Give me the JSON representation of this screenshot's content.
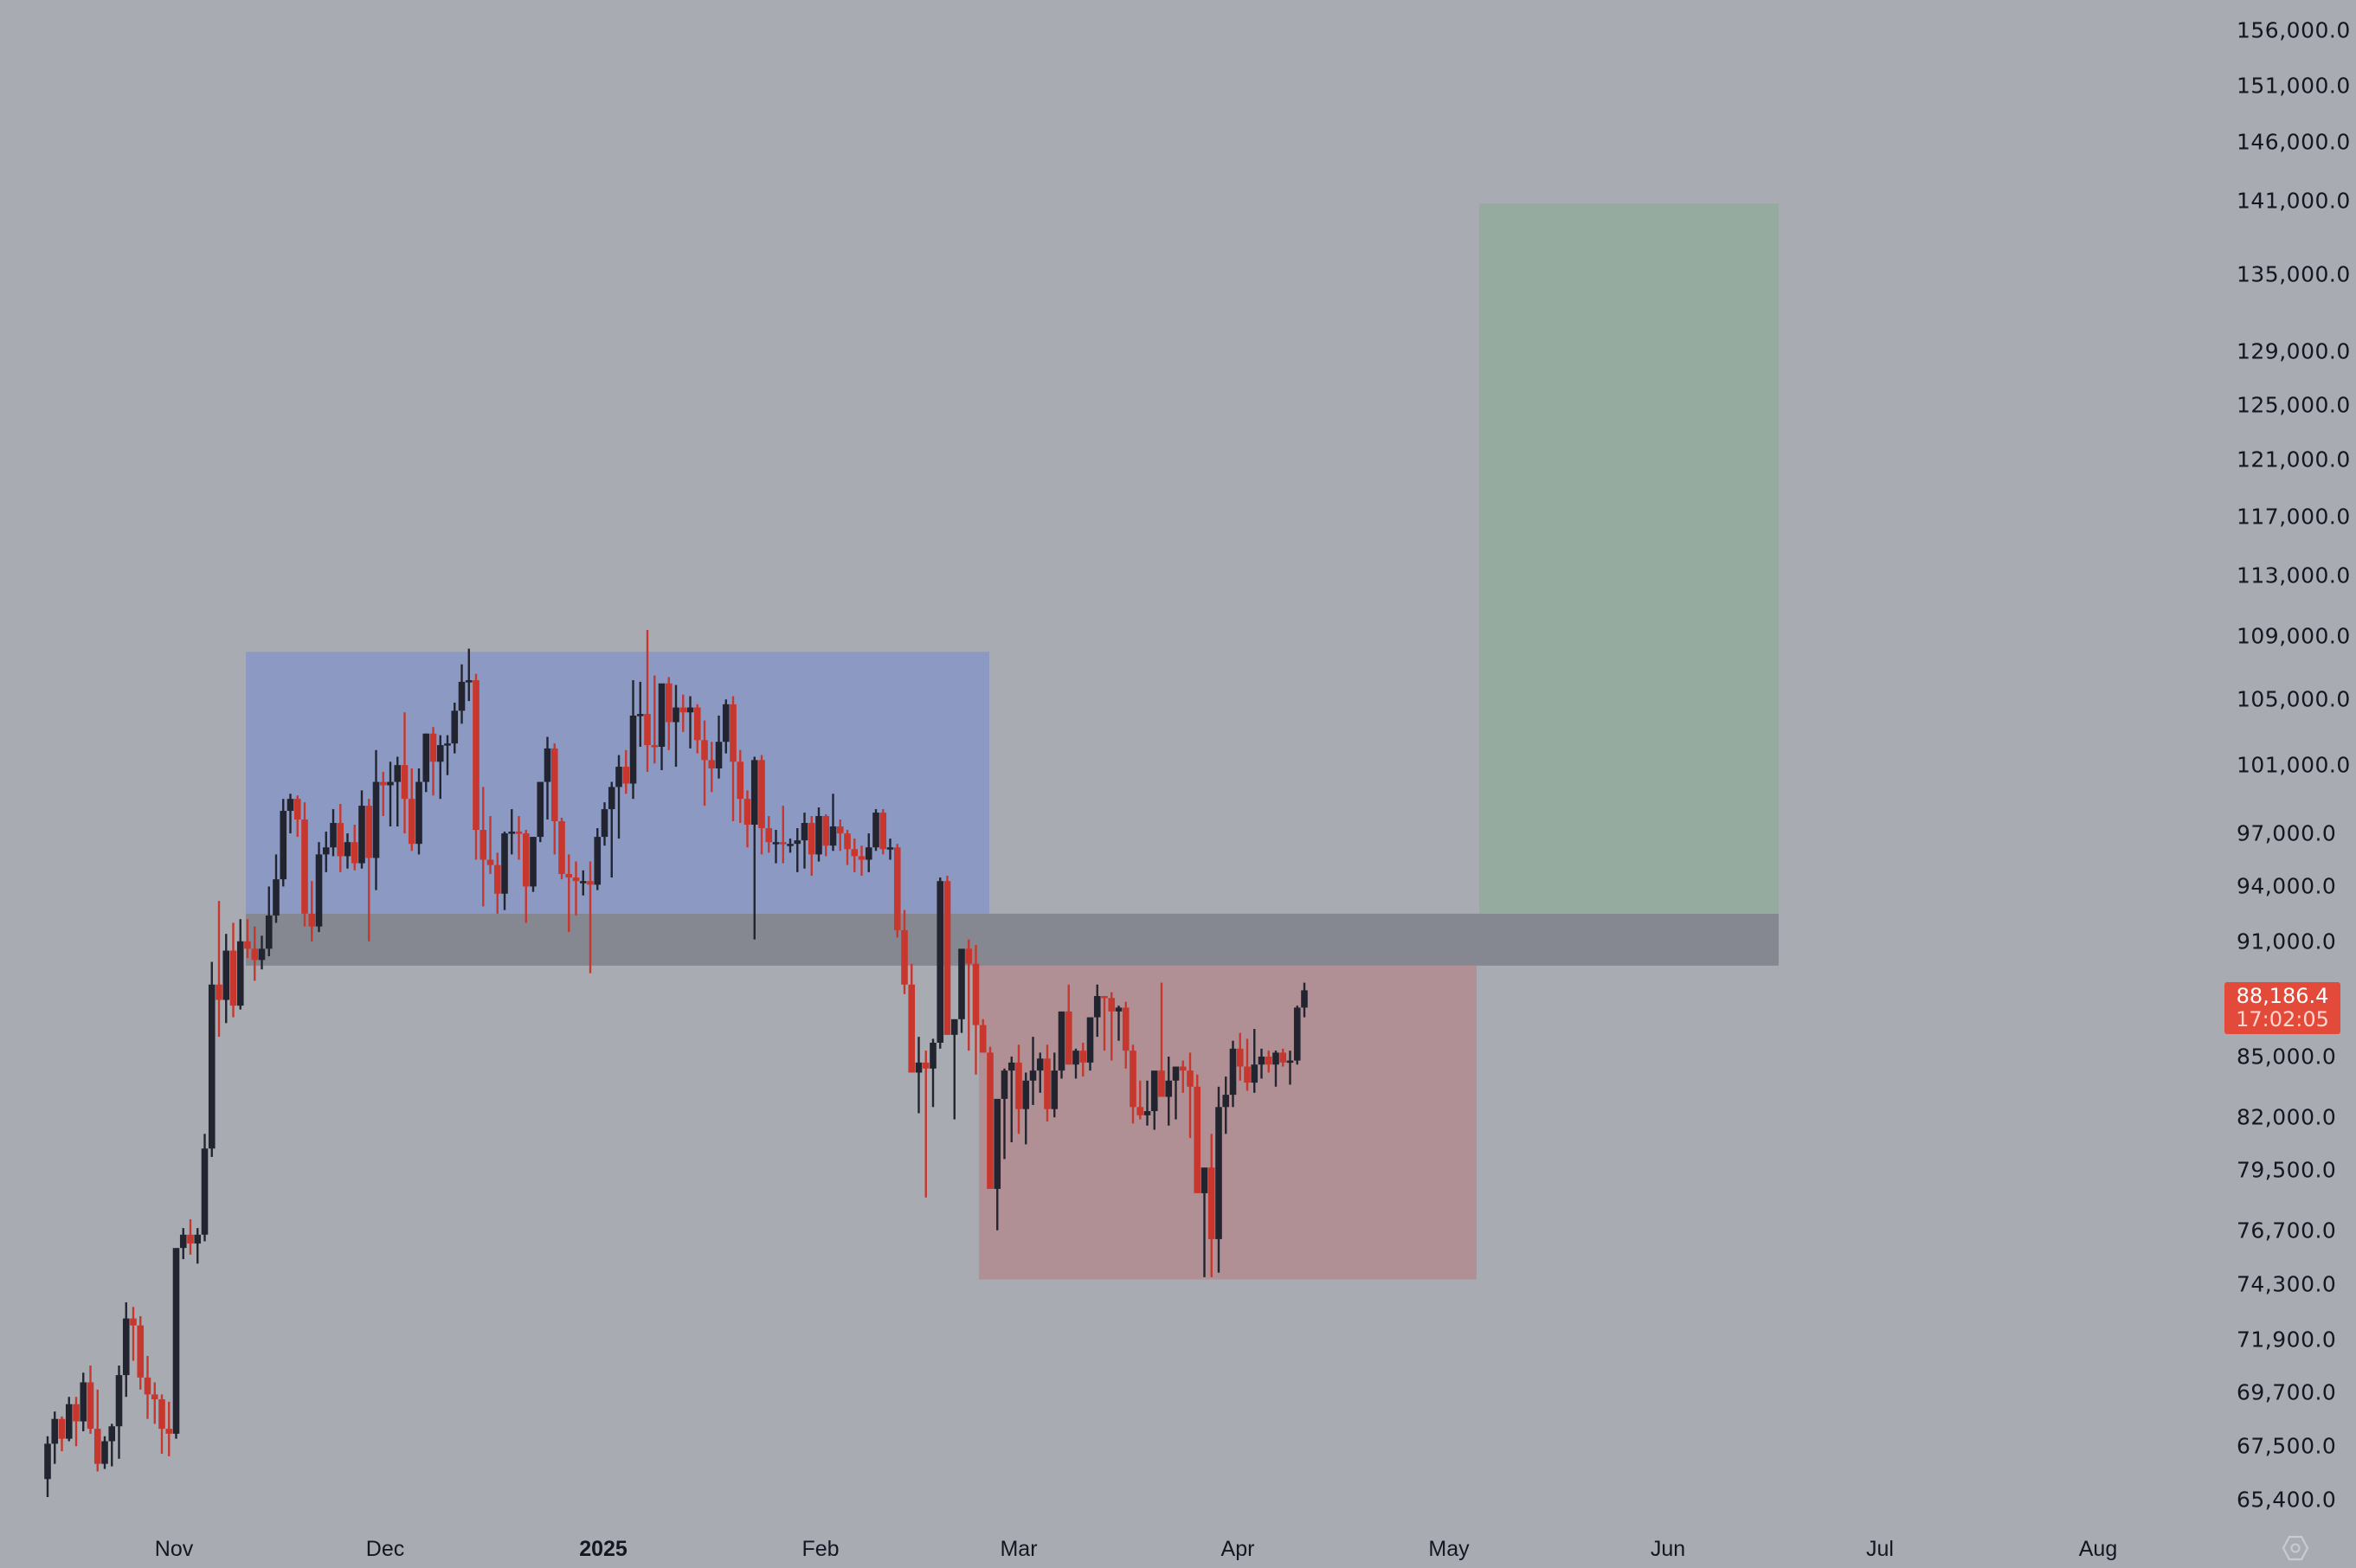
{
  "chart_data": {
    "type": "candlestick",
    "title": "",
    "xlabel": "",
    "ylabel": "",
    "y_scale": "log",
    "ylim": [
      63800,
      160000
    ],
    "grid": false,
    "colors": {
      "background": "#a9abb3",
      "up_candle": "#22252f",
      "down_candle": "#c8372e",
      "range_box": "#8c99c2",
      "resistance_band": "#858890",
      "lower_box": "#b09095",
      "target_box": "#96ab9f",
      "price_tag": "#e44a3a"
    },
    "y_ticks": [
      {
        "label": "156,000.0",
        "value": 156000
      },
      {
        "label": "151,000.0",
        "value": 151000
      },
      {
        "label": "146,000.0",
        "value": 146000
      },
      {
        "label": "141,000.0",
        "value": 141000
      },
      {
        "label": "135,000.0",
        "value": 135000
      },
      {
        "label": "129,000.0",
        "value": 129000
      },
      {
        "label": "125,000.0",
        "value": 125000
      },
      {
        "label": "121,000.0",
        "value": 121000
      },
      {
        "label": "117,000.0",
        "value": 117000
      },
      {
        "label": "113,000.0",
        "value": 113000
      },
      {
        "label": "109,000.0",
        "value": 109000
      },
      {
        "label": "105,000.0",
        "value": 105000
      },
      {
        "label": "101,000.0",
        "value": 101000
      },
      {
        "label": "97,000.0",
        "value": 97000
      },
      {
        "label": "94,000.0",
        "value": 94000
      },
      {
        "label": "91,000.0",
        "value": 91000
      },
      {
        "label": "85,000.0",
        "value": 85000
      },
      {
        "label": "82,000.0",
        "value": 82000
      },
      {
        "label": "79,500.0",
        "value": 79500
      },
      {
        "label": "76,700.0",
        "value": 76700
      },
      {
        "label": "74,300.0",
        "value": 74300
      },
      {
        "label": "71,900.0",
        "value": 71900
      },
      {
        "label": "69,700.0",
        "value": 69700
      },
      {
        "label": "67,500.0",
        "value": 67500
      },
      {
        "label": "65,400.0",
        "value": 65400
      }
    ],
    "x_ticks": [
      {
        "label": "Nov",
        "x": 201,
        "bold": false
      },
      {
        "label": "Dec",
        "x": 445,
        "bold": false
      },
      {
        "label": "2025",
        "x": 697,
        "bold": true
      },
      {
        "label": "Feb",
        "x": 948,
        "bold": false
      },
      {
        "label": "Mar",
        "x": 1177,
        "bold": false
      },
      {
        "label": "Apr",
        "x": 1430,
        "bold": false
      },
      {
        "label": "May",
        "x": 1674,
        "bold": false
      },
      {
        "label": "Jun",
        "x": 1927,
        "bold": false
      },
      {
        "label": "Jul",
        "x": 2172,
        "bold": false
      },
      {
        "label": "Aug",
        "x": 2424,
        "bold": false
      }
    ],
    "current_price": {
      "value": 88186.4,
      "label": "88,186.4",
      "countdown": "17:02:05"
    },
    "zones": [
      {
        "name": "consolidation-range",
        "from_x": 284,
        "to_x": 1143,
        "top": 108000,
        "bottom": 92500,
        "color": "#8c99c2"
      },
      {
        "name": "resistance-band",
        "from_x": 284,
        "to_x": 2055,
        "top": 92500,
        "bottom": 89700,
        "color": "#858890"
      },
      {
        "name": "correction-range",
        "from_x": 1131,
        "to_x": 1706,
        "top": 89700,
        "bottom": 74500,
        "color": "#b09095"
      },
      {
        "name": "target-projection",
        "from_x": 1709,
        "to_x": 2055,
        "top": 140800,
        "bottom": 92500,
        "color": "#96ab9f"
      }
    ],
    "candles_start_x": 55,
    "candle_spacing": 8.25,
    "candles": [
      [
        66200,
        67900,
        65500,
        67600
      ],
      [
        67600,
        68900,
        66800,
        68600
      ],
      [
        68600,
        68700,
        67300,
        67800
      ],
      [
        67800,
        69500,
        67700,
        69200
      ],
      [
        69200,
        69500,
        67500,
        68500
      ],
      [
        68500,
        70500,
        68100,
        70100
      ],
      [
        70100,
        70800,
        68000,
        68200
      ],
      [
        68200,
        69800,
        66500,
        66800
      ],
      [
        66800,
        67900,
        66600,
        67700
      ],
      [
        67700,
        68400,
        66700,
        68300
      ],
      [
        68300,
        70800,
        67000,
        70400
      ],
      [
        70400,
        73500,
        69500,
        72800
      ],
      [
        72800,
        73300,
        71000,
        72500
      ],
      [
        72500,
        72900,
        69800,
        70300
      ],
      [
        70300,
        71200,
        68600,
        69600
      ],
      [
        69600,
        70100,
        68400,
        69400
      ],
      [
        69400,
        69600,
        67200,
        68200
      ],
      [
        68200,
        69300,
        67100,
        68000
      ],
      [
        68000,
        74500,
        67800,
        75900
      ],
      [
        75900,
        76800,
        75400,
        76500
      ],
      [
        76500,
        77200,
        75600,
        76100
      ],
      [
        76100,
        76800,
        75200,
        76500
      ],
      [
        76500,
        81200,
        76200,
        80500
      ],
      [
        80500,
        89900,
        80100,
        88700
      ],
      [
        88700,
        93200,
        86000,
        87900
      ],
      [
        87900,
        91400,
        86700,
        90500
      ],
      [
        90500,
        92000,
        87000,
        87600
      ],
      [
        87600,
        92200,
        87400,
        91000
      ],
      [
        91000,
        92200,
        90100,
        90600
      ],
      [
        90600,
        91800,
        88900,
        90000
      ],
      [
        90000,
        91300,
        89500,
        90600
      ],
      [
        90600,
        94000,
        90200,
        92400
      ],
      [
        92400,
        95800,
        92000,
        94400
      ],
      [
        94400,
        99000,
        94000,
        98300
      ],
      [
        98300,
        99300,
        97000,
        99000
      ],
      [
        99000,
        99200,
        96800,
        97800
      ],
      [
        97800,
        98800,
        91800,
        92500
      ],
      [
        92500,
        94300,
        91000,
        91800
      ],
      [
        91800,
        96500,
        91500,
        95800
      ],
      [
        95800,
        97100,
        94800,
        96200
      ],
      [
        96200,
        98400,
        95700,
        97600
      ],
      [
        97600,
        98700,
        94800,
        95700
      ],
      [
        95700,
        97000,
        95000,
        96500
      ],
      [
        96500,
        97500,
        94900,
        95300
      ],
      [
        95300,
        99500,
        95000,
        98600
      ],
      [
        98600,
        99000,
        91000,
        95600
      ],
      [
        95600,
        101900,
        93800,
        100000
      ],
      [
        100000,
        100600,
        98000,
        99800
      ],
      [
        99800,
        101200,
        97400,
        100000
      ],
      [
        100000,
        101500,
        97400,
        101000
      ],
      [
        101000,
        104200,
        97000,
        99000
      ],
      [
        99000,
        100800,
        96000,
        96400
      ],
      [
        96400,
        100800,
        95800,
        100000
      ],
      [
        100000,
        102900,
        99400,
        102900
      ],
      [
        102900,
        103300,
        99200,
        101200
      ],
      [
        101200,
        102800,
        99000,
        102200
      ],
      [
        102200,
        102800,
        100400,
        102300
      ],
      [
        102300,
        104800,
        101700,
        104300
      ],
      [
        104300,
        107200,
        103500,
        106100
      ],
      [
        106100,
        108200,
        104900,
        106200
      ],
      [
        106200,
        106600,
        95500,
        97200
      ],
      [
        97200,
        99700,
        92900,
        95500
      ],
      [
        95500,
        98000,
        94700,
        95200
      ],
      [
        95200,
        95900,
        92500,
        93600
      ],
      [
        93600,
        97100,
        92700,
        97000
      ],
      [
        97000,
        98400,
        95800,
        97100
      ],
      [
        97100,
        98000,
        95500,
        97000
      ],
      [
        97000,
        97200,
        92000,
        94000
      ],
      [
        94000,
        96800,
        93700,
        96800
      ],
      [
        96800,
        100000,
        96500,
        100000
      ],
      [
        100000,
        102700,
        97800,
        102000
      ],
      [
        102000,
        102300,
        95800,
        97700
      ],
      [
        97700,
        97900,
        94400,
        94700
      ],
      [
        94700,
        95800,
        91500,
        94500
      ],
      [
        94500,
        95400,
        92400,
        94300
      ],
      [
        94300,
        94900,
        93500,
        94300
      ],
      [
        94300,
        95400,
        89300,
        94100
      ],
      [
        94100,
        97300,
        93800,
        96800
      ],
      [
        96800,
        98800,
        96300,
        98400
      ],
      [
        98400,
        100000,
        94500,
        99700
      ],
      [
        99700,
        101600,
        96700,
        100900
      ],
      [
        100900,
        101900,
        99300,
        99900
      ],
      [
        99900,
        106200,
        99000,
        104000
      ],
      [
        104000,
        106100,
        102100,
        104100
      ],
      [
        104100,
        109400,
        100600,
        102200
      ],
      [
        102200,
        106500,
        101100,
        102100
      ],
      [
        102100,
        105900,
        100700,
        106000
      ],
      [
        106000,
        106400,
        101900,
        103600
      ],
      [
        103600,
        105900,
        100900,
        104500
      ],
      [
        104500,
        105300,
        103000,
        104200
      ],
      [
        104200,
        105200,
        102000,
        104500
      ],
      [
        104500,
        104700,
        101700,
        102500
      ],
      [
        102500,
        103700,
        98600,
        101300
      ],
      [
        101300,
        102400,
        99400,
        100800
      ],
      [
        100800,
        104000,
        100200,
        102400
      ],
      [
        102400,
        105000,
        101700,
        104700
      ],
      [
        104700,
        105200,
        97700,
        101200
      ],
      [
        101200,
        101900,
        97600,
        99000
      ],
      [
        99000,
        99500,
        96200,
        97500
      ],
      [
        97500,
        101500,
        91100,
        101300
      ],
      [
        101300,
        101600,
        95800,
        97300
      ],
      [
        97300,
        98000,
        95900,
        96500
      ],
      [
        96500,
        97200,
        95300,
        96500
      ],
      [
        96500,
        98600,
        95300,
        96400
      ],
      [
        96400,
        96700,
        95900,
        96400
      ],
      [
        96400,
        97300,
        94800,
        96600
      ],
      [
        96600,
        98200,
        95000,
        97600
      ],
      [
        97600,
        98000,
        94600,
        95800
      ],
      [
        95800,
        98500,
        95400,
        98000
      ],
      [
        98000,
        98100,
        95700,
        96300
      ],
      [
        96300,
        99300,
        96000,
        97400
      ],
      [
        97400,
        97800,
        96000,
        97000
      ],
      [
        97000,
        97200,
        95200,
        96100
      ],
      [
        96100,
        96700,
        94800,
        95700
      ],
      [
        95700,
        96300,
        94600,
        95500
      ],
      [
        95500,
        97000,
        94800,
        96200
      ],
      [
        96200,
        98400,
        96000,
        98200
      ],
      [
        98200,
        98400,
        95800,
        96100
      ],
      [
        96100,
        96700,
        95500,
        96200
      ],
      [
        96200,
        96400,
        91200,
        91600
      ],
      [
        91600,
        92700,
        88200,
        88700
      ],
      [
        88700,
        89800,
        86300,
        84200
      ],
      [
        84200,
        86000,
        82200,
        84700
      ],
      [
        84700,
        85300,
        78200,
        84400
      ],
      [
        84400,
        85900,
        82500,
        85700
      ],
      [
        85700,
        94500,
        85400,
        94300
      ],
      [
        94300,
        94600,
        86100,
        86100
      ],
      [
        86100,
        86900,
        81900,
        86900
      ],
      [
        86900,
        88400,
        86200,
        90600
      ],
      [
        90600,
        91100,
        85300,
        89800
      ],
      [
        89800,
        90800,
        84100,
        86600
      ],
      [
        86600,
        86900,
        85600,
        85200
      ],
      [
        85200,
        85500,
        80300,
        78600
      ],
      [
        78600,
        81200,
        76700,
        82900
      ],
      [
        82900,
        84400,
        80000,
        84300
      ],
      [
        84300,
        85000,
        80800,
        84700
      ],
      [
        84700,
        85600,
        81200,
        82400
      ],
      [
        82400,
        84200,
        80700,
        83800
      ],
      [
        83800,
        86000,
        82600,
        84300
      ],
      [
        84300,
        85200,
        83200,
        84900
      ],
      [
        84900,
        85600,
        81800,
        82400
      ],
      [
        82400,
        85200,
        82000,
        84300
      ],
      [
        84300,
        87200,
        83900,
        87300
      ],
      [
        87300,
        88700,
        84600,
        84600
      ],
      [
        84600,
        85400,
        83900,
        85300
      ],
      [
        85300,
        85700,
        84000,
        84700
      ],
      [
        84700,
        86600,
        84300,
        87000
      ],
      [
        87000,
        88700,
        86000,
        88100
      ],
      [
        88100,
        88100,
        85300,
        88000
      ],
      [
        88000,
        88300,
        84800,
        87300
      ],
      [
        87300,
        87600,
        85800,
        87500
      ],
      [
        87500,
        87800,
        84400,
        85300
      ],
      [
        85300,
        85600,
        81700,
        82500
      ],
      [
        82500,
        83800,
        81900,
        82100
      ],
      [
        82100,
        83800,
        81600,
        82300
      ],
      [
        82300,
        84000,
        81400,
        84300
      ],
      [
        84300,
        88800,
        84100,
        83000
      ],
      [
        83000,
        85000,
        81600,
        83800
      ],
      [
        83800,
        84300,
        81900,
        84500
      ],
      [
        84500,
        84800,
        83200,
        84300
      ],
      [
        84300,
        85200,
        81000,
        83500
      ],
      [
        83500,
        84100,
        80000,
        78400
      ],
      [
        78400,
        79400,
        74600,
        79600
      ],
      [
        79600,
        81200,
        74600,
        76300
      ],
      [
        76300,
        83500,
        74800,
        82500
      ],
      [
        82500,
        84000,
        81200,
        83100
      ],
      [
        83100,
        85800,
        82500,
        85400
      ],
      [
        85400,
        86200,
        83800,
        84500
      ],
      [
        84500,
        85900,
        83300,
        83700
      ],
      [
        83700,
        86400,
        83200,
        84600
      ],
      [
        84600,
        85400,
        83900,
        85000
      ],
      [
        85000,
        85300,
        84200,
        84600
      ],
      [
        84600,
        85300,
        83500,
        85200
      ],
      [
        85200,
        85400,
        84500,
        84700
      ],
      [
        84700,
        85300,
        83600,
        84800
      ],
      [
        84800,
        87600,
        84600,
        87500
      ],
      [
        87500,
        88800,
        87000,
        88400
      ]
    ]
  },
  "price_axis": {
    "current_price_label": "88,186.4",
    "countdown_label": "17:02:05",
    "settings_icon": "hexagon-gear-icon"
  }
}
